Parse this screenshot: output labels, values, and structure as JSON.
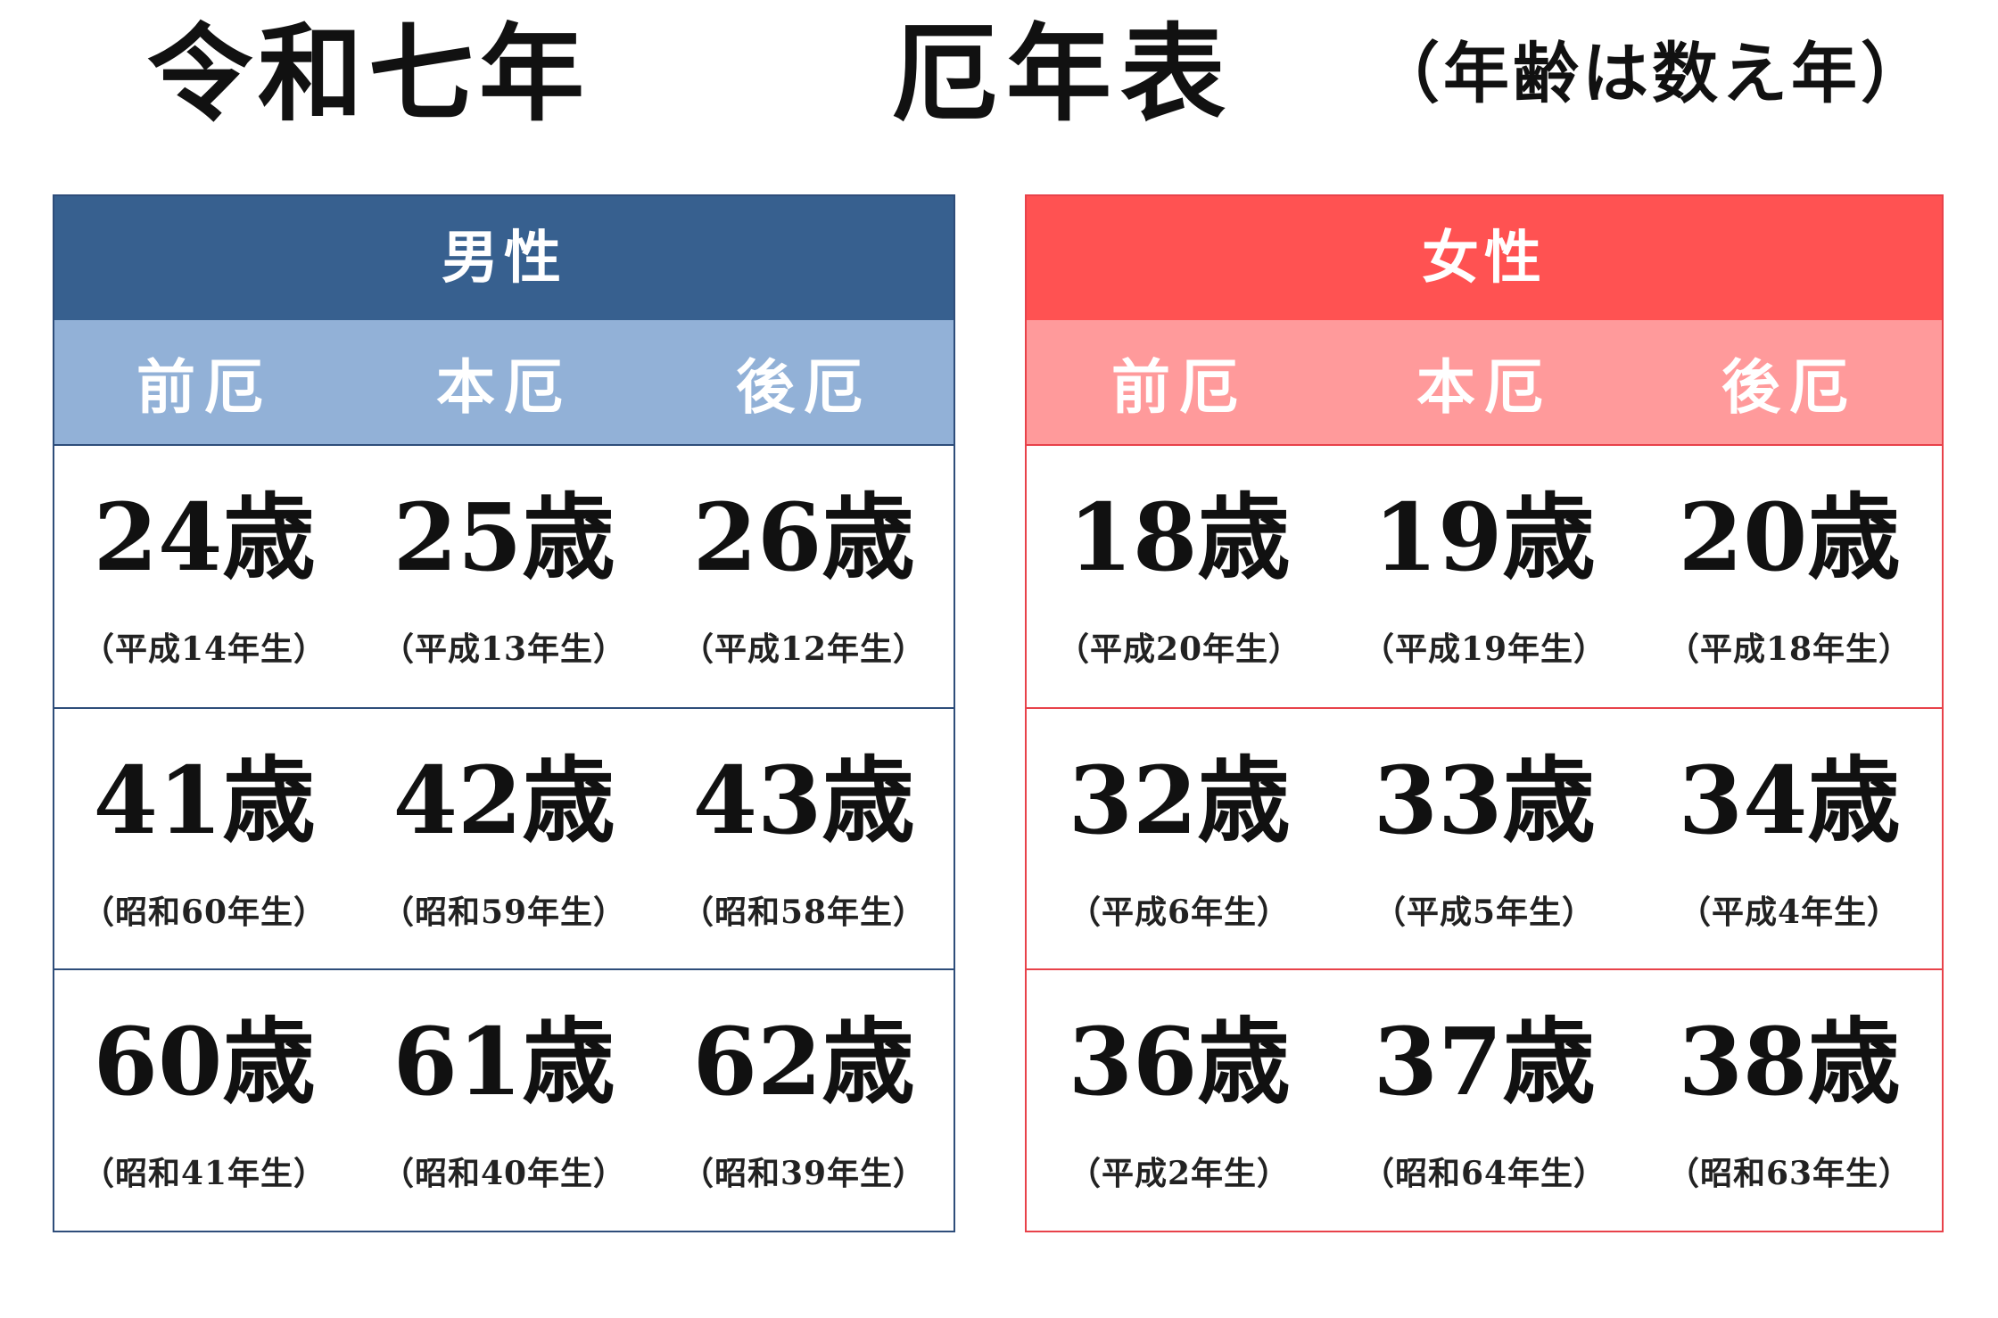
{
  "title": {
    "left": "令和七年",
    "center": "厄年表",
    "right": "（年齢は数え年）"
  },
  "male": {
    "heading": "男性",
    "columns": [
      "前厄",
      "本厄",
      "後厄"
    ],
    "rows": [
      [
        {
          "age": "24歳",
          "birth": "（平成14年生）"
        },
        {
          "age": "25歳",
          "birth": "（平成13年生）"
        },
        {
          "age": "26歳",
          "birth": "（平成12年生）"
        }
      ],
      [
        {
          "age": "41歳",
          "birth": "（昭和60年生）"
        },
        {
          "age": "42歳",
          "birth": "（昭和59年生）"
        },
        {
          "age": "43歳",
          "birth": "（昭和58年生）"
        }
      ],
      [
        {
          "age": "60歳",
          "birth": "（昭和41年生）"
        },
        {
          "age": "61歳",
          "birth": "（昭和40年生）"
        },
        {
          "age": "62歳",
          "birth": "（昭和39年生）"
        }
      ]
    ]
  },
  "female": {
    "heading": "女性",
    "columns": [
      "前厄",
      "本厄",
      "後厄"
    ],
    "rows": [
      [
        {
          "age": "18歳",
          "birth": "（平成20年生）"
        },
        {
          "age": "19歳",
          "birth": "（平成19年生）"
        },
        {
          "age": "20歳",
          "birth": "（平成18年生）"
        }
      ],
      [
        {
          "age": "32歳",
          "birth": "（平成6年生）"
        },
        {
          "age": "33歳",
          "birth": "（平成5年生）"
        },
        {
          "age": "34歳",
          "birth": "（平成4年生）"
        }
      ],
      [
        {
          "age": "36歳",
          "birth": "（平成2年生）"
        },
        {
          "age": "37歳",
          "birth": "（昭和64年生）"
        },
        {
          "age": "38歳",
          "birth": "（昭和63年生）"
        }
      ]
    ]
  },
  "colors": {
    "male_header": "#37608f",
    "male_subheader": "#92b1d7",
    "male_border": "#2e4d7a",
    "female_header": "#ff5252",
    "female_subheader": "#ff9a9b",
    "female_border": "#e8424a"
  }
}
